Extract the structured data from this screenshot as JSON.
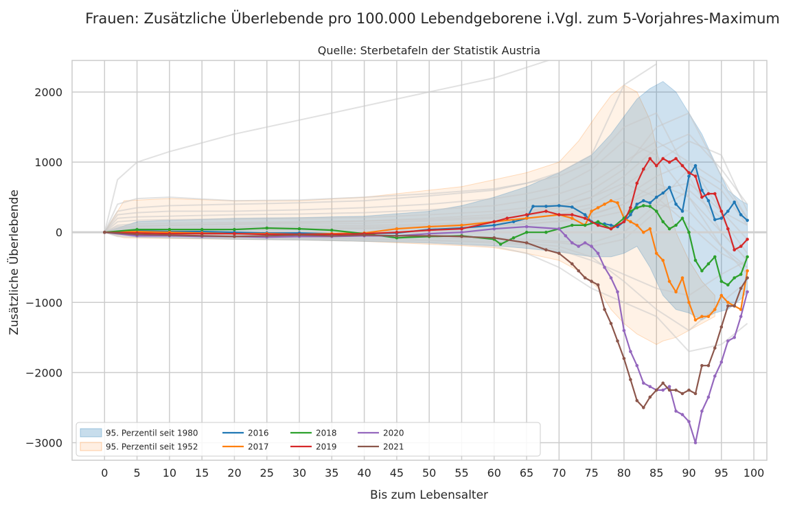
{
  "chart_data": {
    "type": "line",
    "title": "Frauen: Zusätzliche Überlebende pro 100.000 Lebendgeborene i.Vgl. zum 5-Vorjahres-Maximum",
    "subtitle": "Quelle: Sterbetafeln der Statistik Austria",
    "xlabel": "Bis zum Lebensalter",
    "ylabel": "Zusätzliche Überlebende",
    "xlim": [
      -5,
      102
    ],
    "ylim": [
      -3250,
      2450
    ],
    "xticks": [
      0,
      5,
      10,
      15,
      20,
      25,
      30,
      35,
      40,
      45,
      50,
      55,
      60,
      65,
      70,
      75,
      80,
      85,
      90,
      95,
      100
    ],
    "yticks": [
      -3000,
      -2000,
      -1000,
      0,
      1000,
      2000
    ],
    "ytick_labels": [
      "−3000",
      "−2000",
      "−1000",
      "0",
      "1000",
      "2000"
    ],
    "grid": true,
    "legend_position": "lower-left",
    "bands": [
      {
        "name": "95. Perzentil seit 1980",
        "color": "#1f77b4",
        "x": [
          0,
          5,
          10,
          20,
          30,
          40,
          50,
          55,
          60,
          65,
          70,
          75,
          78,
          80,
          82,
          84,
          86,
          88,
          90,
          92,
          94,
          96,
          98,
          99
        ],
        "upper": [
          0,
          150,
          170,
          200,
          210,
          230,
          300,
          380,
          500,
          650,
          850,
          1100,
          1400,
          1650,
          1900,
          2050,
          2150,
          2000,
          1700,
          1400,
          1000,
          600,
          450,
          400
        ],
        "lower": [
          0,
          -70,
          -80,
          -100,
          -110,
          -130,
          -150,
          -170,
          -190,
          -230,
          -280,
          -350,
          -350,
          -300,
          -200,
          -500,
          -900,
          -1100,
          -1150,
          -1250,
          -1150,
          -1100,
          -950,
          -850
        ]
      },
      {
        "name": "95. Perzentil seit 1952",
        "color": "#ff7f0e",
        "x": [
          0,
          3,
          10,
          20,
          30,
          40,
          50,
          55,
          60,
          65,
          70,
          73,
          76,
          78,
          80,
          82,
          84,
          85,
          86,
          88,
          90,
          92,
          94
        ],
        "upper": [
          0,
          450,
          480,
          450,
          450,
          500,
          600,
          650,
          750,
          850,
          1000,
          1300,
          1700,
          1950,
          2100,
          2000,
          1600,
          1200,
          700,
          0,
          -400,
          -700,
          -900
        ],
        "lower": [
          0,
          -80,
          -90,
          -100,
          -110,
          -130,
          -170,
          -190,
          -220,
          -300,
          -400,
          -550,
          -800,
          -1100,
          -1300,
          -1450,
          -1550,
          -1600,
          -1550,
          -1500,
          -1400,
          -1300,
          -1200
        ]
      }
    ],
    "background_series": {
      "color": "#c8c8c8",
      "x": [
        0,
        2,
        5,
        10,
        20,
        30,
        40,
        50,
        60,
        65,
        70,
        75,
        80,
        85,
        90,
        95,
        99
      ],
      "lines": [
        [
          0,
          750,
          1000,
          1150,
          1400,
          1600,
          1800,
          2000,
          2200,
          2350,
          2500
        ],
        [
          0,
          400,
          480,
          500,
          450,
          460,
          500,
          550,
          620,
          700,
          800,
          1000,
          1500,
          1700,
          800,
          0,
          -400
        ],
        [
          0,
          300,
          350,
          380,
          400,
          420,
          450,
          520,
          600,
          700,
          850,
          1100,
          2100,
          2400
        ],
        [
          0,
          250,
          280,
          300,
          300,
          320,
          350,
          400,
          480,
          550,
          650,
          900,
          1300,
          1100,
          500,
          -200,
          -600
        ],
        [
          0,
          200,
          220,
          230,
          250,
          260,
          280,
          320,
          380,
          450,
          550,
          700,
          1000,
          1300,
          1000,
          300,
          100
        ],
        [
          0,
          150,
          170,
          180,
          190,
          200,
          210,
          250,
          300,
          350,
          420,
          600,
          900,
          1500,
          1700,
          800,
          200
        ],
        [
          0,
          100,
          120,
          130,
          140,
          150,
          160,
          180,
          220,
          280,
          350,
          500,
          800,
          1200,
          1400,
          900,
          400
        ],
        [
          0,
          80,
          90,
          100,
          110,
          120,
          130,
          160,
          200,
          240,
          300,
          400,
          650,
          1000,
          1300,
          1100,
          300
        ],
        [
          0,
          50,
          60,
          70,
          80,
          90,
          100,
          120,
          150,
          190,
          250,
          350,
          500,
          800,
          1000,
          700,
          200
        ],
        [
          0,
          30,
          40,
          50,
          60,
          70,
          80,
          100,
          130,
          160,
          200,
          260,
          400,
          600,
          700,
          300,
          -100
        ],
        [
          0,
          20,
          25,
          30,
          40,
          50,
          60,
          80,
          100,
          120,
          150,
          200,
          300,
          400,
          300,
          -200,
          -500
        ],
        [
          0,
          -20,
          -30,
          -40,
          -50,
          -60,
          -70,
          -80,
          -100,
          -130,
          -150,
          -200,
          -100,
          300,
          600,
          200,
          -300
        ],
        [
          0,
          -40,
          -50,
          -60,
          -70,
          -80,
          -100,
          -120,
          -150,
          -180,
          -250,
          -400,
          -600,
          -800,
          -900,
          -600,
          -400
        ],
        [
          0,
          -60,
          -70,
          -80,
          -90,
          -100,
          -120,
          -150,
          -200,
          -300,
          -500,
          -800,
          -1000,
          -1200,
          -1700,
          -1600,
          -1300
        ],
        [
          0,
          -30,
          -40,
          -50,
          -60,
          -70,
          -90,
          -110,
          -130,
          -160,
          -200,
          -350,
          -700,
          -1100,
          -1400,
          -1000,
          -700
        ],
        [
          0,
          60,
          80,
          100,
          120,
          140,
          160,
          200,
          250,
          300,
          380,
          500,
          700,
          500,
          100,
          -300,
          -500
        ],
        [
          0,
          10,
          15,
          20,
          30,
          40,
          50,
          70,
          90,
          120,
          160,
          250,
          400,
          700,
          500,
          0,
          -400
        ],
        [
          0,
          -10,
          -15,
          -20,
          -30,
          -40,
          -50,
          -60,
          -80,
          -100,
          -130,
          -150,
          0,
          400,
          900,
          600,
          100
        ]
      ]
    },
    "series": [
      {
        "name": "2016",
        "color": "#1f77b4",
        "x": [
          0,
          5,
          10,
          15,
          20,
          25,
          30,
          35,
          40,
          45,
          50,
          55,
          60,
          63,
          65,
          66,
          68,
          70,
          72,
          74,
          75,
          76,
          77,
          78,
          79,
          80,
          81,
          82,
          83,
          84,
          85,
          86,
          87,
          88,
          89,
          90,
          91,
          92,
          93,
          94,
          95,
          96,
          97,
          98,
          99
        ],
        "y": [
          0,
          20,
          10,
          10,
          0,
          -10,
          -10,
          -20,
          -20,
          -10,
          40,
          60,
          100,
          150,
          200,
          370,
          370,
          380,
          360,
          250,
          150,
          120,
          120,
          100,
          80,
          150,
          250,
          400,
          450,
          420,
          500,
          560,
          640,
          400,
          300,
          800,
          950,
          600,
          450,
          180,
          200,
          300,
          430,
          250,
          170
        ]
      },
      {
        "name": "2017",
        "color": "#ff7f0e",
        "x": [
          0,
          5,
          10,
          15,
          20,
          25,
          30,
          35,
          40,
          45,
          50,
          55,
          60,
          65,
          70,
          72,
          74,
          75,
          76,
          77,
          78,
          79,
          80,
          81,
          82,
          83,
          84,
          85,
          86,
          87,
          88,
          89,
          90,
          91,
          92,
          93,
          94,
          95,
          96,
          97,
          98,
          99
        ],
        "y": [
          0,
          10,
          0,
          -10,
          -20,
          -20,
          -30,
          -20,
          -10,
          50,
          80,
          100,
          150,
          200,
          250,
          200,
          100,
          300,
          350,
          400,
          450,
          420,
          200,
          150,
          100,
          0,
          50,
          -300,
          -400,
          -700,
          -850,
          -650,
          -1000,
          -1250,
          -1200,
          -1200,
          -1100,
          -900,
          -1000,
          -1050,
          -1100,
          -550
        ]
      },
      {
        "name": "2018",
        "color": "#2ca02c",
        "x": [
          0,
          5,
          10,
          15,
          20,
          25,
          30,
          35,
          40,
          45,
          50,
          55,
          60,
          61,
          63,
          65,
          68,
          70,
          72,
          74,
          76,
          78,
          80,
          81,
          82,
          83,
          84,
          85,
          86,
          87,
          88,
          89,
          90,
          91,
          92,
          93,
          94,
          95,
          96,
          97,
          98,
          99
        ],
        "y": [
          0,
          40,
          40,
          40,
          40,
          60,
          50,
          30,
          -20,
          -80,
          -60,
          -50,
          -100,
          -170,
          -80,
          0,
          0,
          50,
          100,
          100,
          150,
          50,
          200,
          300,
          350,
          380,
          370,
          300,
          150,
          50,
          100,
          200,
          0,
          -400,
          -550,
          -450,
          -350,
          -700,
          -750,
          -650,
          -600,
          -350
        ]
      },
      {
        "name": "2019",
        "color": "#d62728",
        "x": [
          0,
          5,
          10,
          15,
          20,
          25,
          30,
          35,
          40,
          45,
          50,
          55,
          60,
          62,
          65,
          68,
          70,
          72,
          74,
          76,
          78,
          80,
          81,
          82,
          83,
          84,
          85,
          86,
          87,
          88,
          89,
          90,
          91,
          92,
          93,
          94,
          95,
          96,
          97,
          98,
          99
        ],
        "y": [
          0,
          -10,
          -20,
          -20,
          -20,
          -30,
          -30,
          -30,
          -20,
          0,
          30,
          50,
          150,
          200,
          250,
          300,
          250,
          250,
          200,
          100,
          50,
          150,
          350,
          700,
          900,
          1050,
          950,
          1050,
          1000,
          1050,
          950,
          850,
          800,
          500,
          550,
          550,
          300,
          50,
          -250,
          -200,
          -100
        ]
      },
      {
        "name": "2020",
        "color": "#9467bd",
        "x": [
          0,
          5,
          10,
          15,
          20,
          25,
          30,
          35,
          40,
          45,
          50,
          55,
          60,
          65,
          70,
          71,
          72,
          73,
          74,
          75,
          76,
          77,
          78,
          79,
          80,
          81,
          82,
          83,
          84,
          85,
          86,
          87,
          88,
          89,
          90,
          91,
          92,
          93,
          94,
          95,
          96,
          97,
          98,
          99
        ],
        "y": [
          0,
          -50,
          -50,
          -60,
          -60,
          -70,
          -60,
          -60,
          -50,
          -50,
          -20,
          0,
          50,
          80,
          50,
          -50,
          -150,
          -200,
          -150,
          -200,
          -300,
          -500,
          -650,
          -850,
          -1400,
          -1700,
          -1900,
          -2150,
          -2200,
          -2250,
          -2250,
          -2200,
          -2550,
          -2600,
          -2700,
          -3000,
          -2550,
          -2350,
          -2050,
          -1850,
          -1550,
          -1500,
          -1200,
          -850
        ]
      },
      {
        "name": "2021",
        "color": "#8c564b",
        "x": [
          0,
          5,
          10,
          15,
          20,
          25,
          30,
          35,
          40,
          45,
          50,
          55,
          60,
          65,
          68,
          70,
          72,
          73,
          74,
          75,
          76,
          77,
          78,
          79,
          80,
          81,
          82,
          83,
          84,
          85,
          86,
          87,
          88,
          89,
          90,
          91,
          92,
          93,
          94,
          95,
          96,
          97,
          98,
          99
        ],
        "y": [
          0,
          -30,
          -40,
          -50,
          -60,
          -50,
          -40,
          -50,
          -40,
          -50,
          -50,
          -60,
          -80,
          -150,
          -250,
          -300,
          -450,
          -550,
          -650,
          -700,
          -750,
          -1100,
          -1300,
          -1550,
          -1800,
          -2100,
          -2400,
          -2500,
          -2350,
          -2250,
          -2150,
          -2250,
          -2250,
          -2300,
          -2250,
          -2300,
          -1900,
          -1900,
          -1650,
          -1350,
          -1050,
          -1050,
          -800,
          -650
        ]
      }
    ]
  }
}
